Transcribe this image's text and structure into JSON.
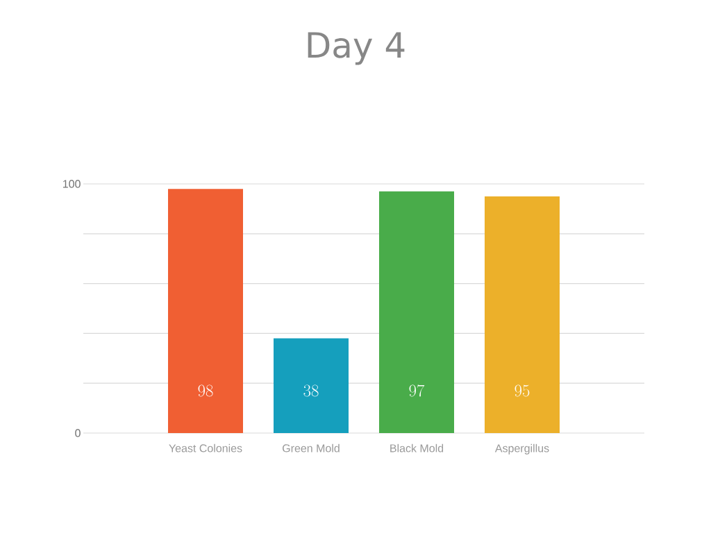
{
  "chart_data": {
    "type": "bar",
    "title": "Day 4",
    "categories": [
      "Yeast Colonies",
      "Green Mold",
      "Black Mold",
      "Aspergillus"
    ],
    "values": [
      98,
      38,
      97,
      95
    ],
    "colors": [
      "#f05f33",
      "#159fbd",
      "#49ac4a",
      "#ecb02a"
    ],
    "ylim": [
      0,
      100
    ],
    "yticks": [
      0,
      {
        "value": 20,
        "label": null
      },
      {
        "value": 40,
        "label": null
      },
      {
        "value": 60,
        "label": null
      },
      {
        "value": 80,
        "label": null
      },
      100
    ],
    "grid": "y",
    "data_labels": true
  }
}
